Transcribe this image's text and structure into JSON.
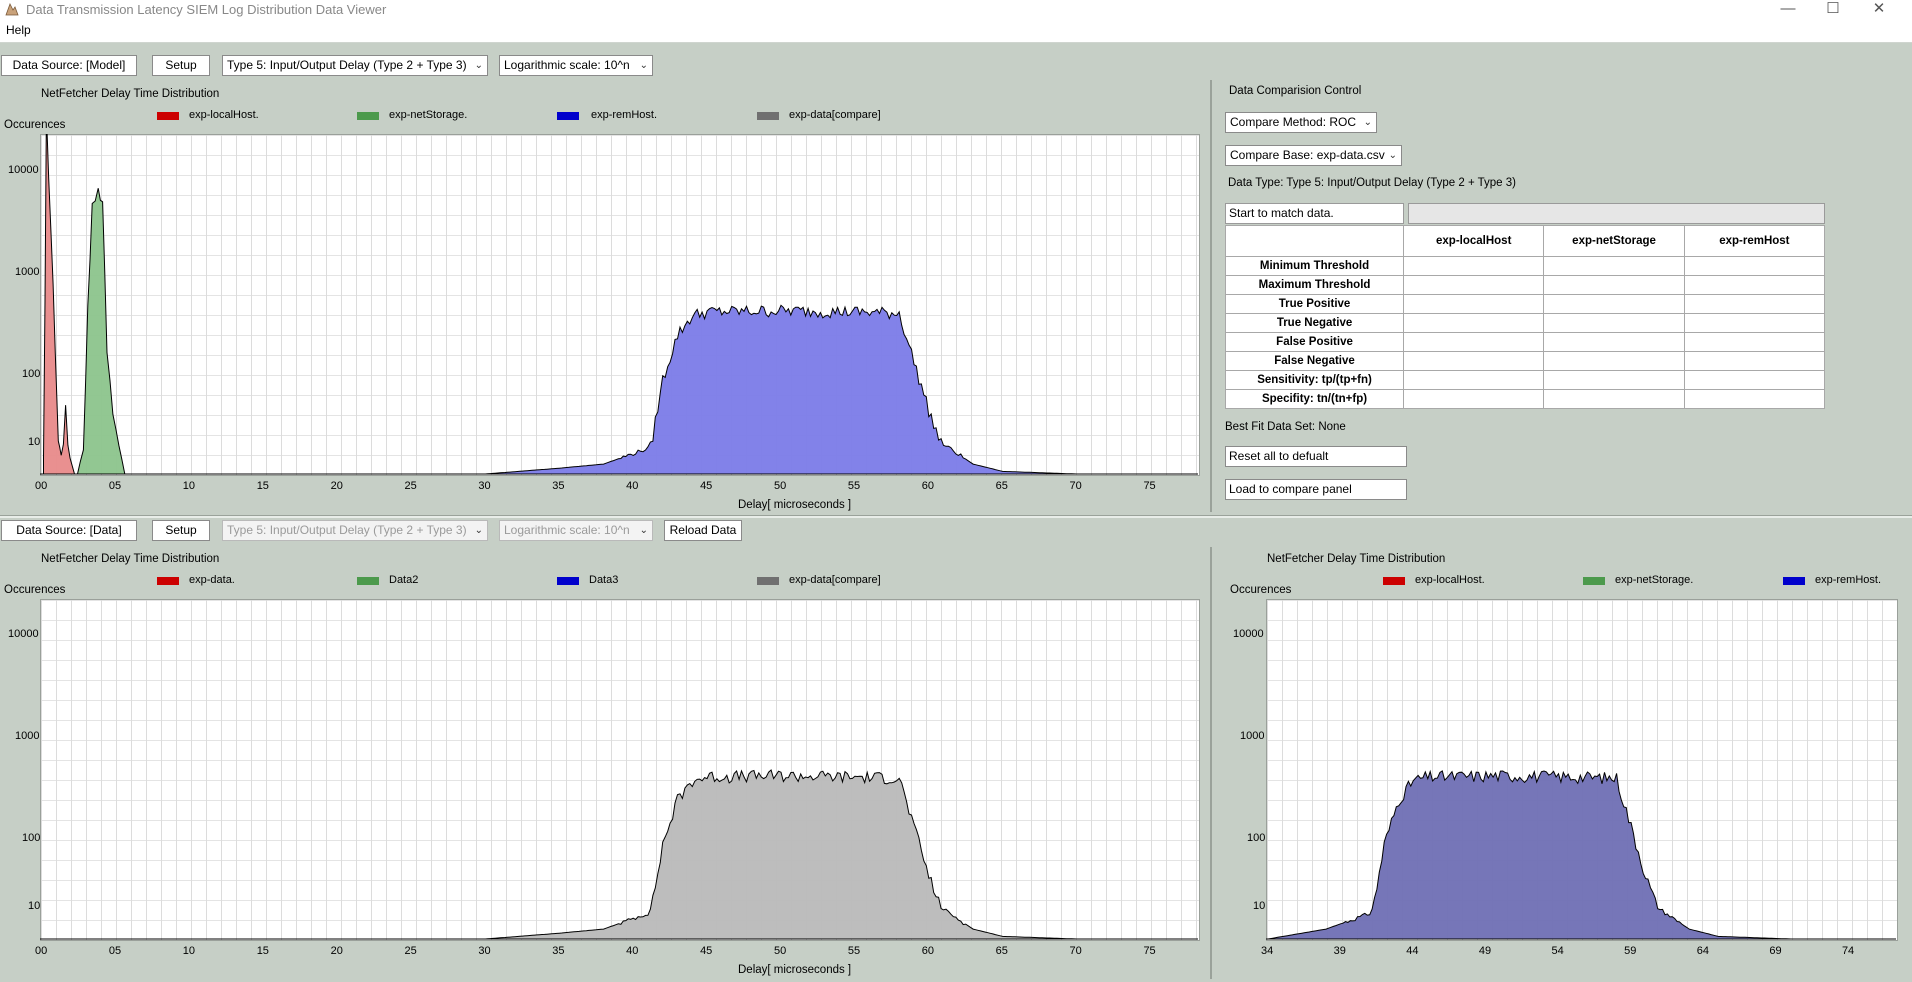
{
  "window": {
    "title": "Data Transmission Latency SIEM Log Distribution Data Viewer",
    "minimize": "—",
    "maximize": "☐",
    "close": "✕"
  },
  "menu": {
    "help": "Help"
  },
  "top_toolbar": {
    "data_source": "Data Source: [Model]",
    "setup": "Setup",
    "type_select": "Type 5: Input/Output Delay (Type 2 + Type 3)",
    "scale_select": "Logarithmic scale: 10^n"
  },
  "bottom_toolbar": {
    "data_source": "Data Source: [Data]",
    "setup": "Setup",
    "type_select": "Type 5: Input/Output Delay (Type 2 + Type 3)",
    "scale_select": "Logarithmic scale: 10^n",
    "reload": "Reload Data"
  },
  "compare_panel": {
    "title": "Data Comparision Control",
    "method_select": "Compare Method: ROC",
    "base_select": "Compare Base: exp-data.csv",
    "data_type": "Data Type: Type 5: Input/Output Delay (Type 2 + Type 3)",
    "status": "Start to match data.",
    "progress": "",
    "columns": [
      "",
      "exp-localHost",
      "exp-netStorage",
      "exp-remHost"
    ],
    "rows": [
      "Minimum Threshold",
      "Maximum Threshold",
      "True Positive",
      "True Negative",
      "False Positive",
      "False Negative",
      "Sensitivity: tp/(tp+fn)",
      "Specifity: tn/(tn+fp)"
    ],
    "best_fit": "Best Fit Data Set: None",
    "reset_button": "Reset all to defualt",
    "load_button": "Load to compare panel"
  },
  "colors": {
    "red": "#cc0000",
    "green": "#4c9a4c",
    "blue": "#0000cc",
    "gray": "#707070",
    "blue_fill": "#7b7be8",
    "gray_fill": "#b9b9b9",
    "green_fill": "#8cc48c",
    "red_fill": "#e88a8a",
    "navy_fill": "#6f6fb4"
  },
  "chart_data": [
    {
      "id": "top",
      "type": "area",
      "title": "NetFetcher Delay Time Distribution",
      "ylabel": "Occurences",
      "xlabel": "Delay[ microseconds ]",
      "yscale": "log",
      "y_ticks": [
        "10000",
        "1000",
        "100",
        "10"
      ],
      "x_ticks": [
        "00",
        "05",
        "10",
        "15",
        "20",
        "25",
        "30",
        "35",
        "40",
        "45",
        "50",
        "55",
        "60",
        "65",
        "70",
        "75"
      ],
      "x_range": [
        0,
        77
      ],
      "legend": [
        "exp-localHost.",
        "exp-netStorage.",
        "exp-remHost.",
        "exp-data[compare]"
      ],
      "series": [
        {
          "name": "exp-localHost.",
          "points": [
            [
              0.1,
              3
            ],
            [
              0.3,
              15000
            ],
            [
              0.6,
              1200
            ],
            [
              0.9,
              80
            ],
            [
              1.1,
              10
            ],
            [
              1.3,
              4
            ],
            [
              1.6,
              20
            ],
            [
              1.9,
              3
            ],
            [
              2.2,
              1
            ]
          ]
        },
        {
          "name": "exp-netStorage.",
          "points": [
            [
              2.4,
              1
            ],
            [
              2.8,
              6
            ],
            [
              3.1,
              200
            ],
            [
              3.4,
              2300
            ],
            [
              3.8,
              2800
            ],
            [
              4.1,
              2200
            ],
            [
              4.4,
              80
            ],
            [
              4.8,
              20
            ],
            [
              5.2,
              8
            ],
            [
              5.6,
              1
            ]
          ]
        },
        {
          "name": "exp-remHost.",
          "points": [
            [
              30,
              1
            ],
            [
              35,
              1.5
            ],
            [
              38,
              2
            ],
            [
              41,
              6
            ],
            [
              42,
              40
            ],
            [
              43,
              110
            ],
            [
              44,
              170
            ],
            [
              45,
              185
            ],
            [
              50,
              190
            ],
            [
              55,
              185
            ],
            [
              58,
              180
            ],
            [
              59,
              60
            ],
            [
              60,
              20
            ],
            [
              61,
              8
            ],
            [
              62,
              4
            ],
            [
              63,
              2
            ],
            [
              65,
              1.2
            ],
            [
              70,
              1
            ],
            [
              76,
              1
            ]
          ]
        }
      ]
    },
    {
      "id": "bottom_left",
      "type": "area",
      "title": "NetFetcher Delay Time Distribution",
      "ylabel": "Occurences",
      "xlabel": "Delay[ microseconds ]",
      "yscale": "log",
      "y_ticks": [
        "10000",
        "1000",
        "100",
        "10"
      ],
      "x_ticks": [
        "00",
        "05",
        "10",
        "15",
        "20",
        "25",
        "30",
        "35",
        "40",
        "45",
        "50",
        "55",
        "60",
        "65",
        "70",
        "75"
      ],
      "x_range": [
        0,
        77
      ],
      "legend": [
        "exp-data.",
        "Data2",
        "Data3",
        "exp-data[compare]"
      ],
      "series": [
        {
          "name": "exp-data.",
          "points": [
            [
              30,
              1
            ],
            [
              35,
              1.5
            ],
            [
              38,
              2
            ],
            [
              41,
              6
            ],
            [
              42,
              40
            ],
            [
              43,
              110
            ],
            [
              44,
              170
            ],
            [
              45,
              185
            ],
            [
              50,
              190
            ],
            [
              55,
              185
            ],
            [
              58,
              180
            ],
            [
              59,
              60
            ],
            [
              60,
              20
            ],
            [
              61,
              8
            ],
            [
              62,
              4
            ],
            [
              63,
              2
            ],
            [
              65,
              1.2
            ],
            [
              70,
              1
            ],
            [
              76,
              1
            ]
          ]
        }
      ]
    },
    {
      "id": "bottom_right",
      "type": "area",
      "title": "NetFetcher Delay Time Distribution",
      "ylabel": "Occurences",
      "yscale": "log",
      "y_ticks": [
        "10000",
        "1000",
        "100",
        "10"
      ],
      "x_ticks": [
        "34",
        "39",
        "44",
        "49",
        "54",
        "59",
        "64",
        "69",
        "74"
      ],
      "x_range": [
        34,
        76
      ],
      "legend": [
        "exp-localHost.",
        "exp-netStorage.",
        "exp-remHost."
      ],
      "series": [
        {
          "name": "exp-remHost.",
          "points": [
            [
              34,
              1
            ],
            [
              38,
              2
            ],
            [
              41,
              6
            ],
            [
              42,
              40
            ],
            [
              43,
              110
            ],
            [
              44,
              170
            ],
            [
              45,
              185
            ],
            [
              50,
              190
            ],
            [
              55,
              185
            ],
            [
              58,
              180
            ],
            [
              59,
              60
            ],
            [
              60,
              20
            ],
            [
              61,
              8
            ],
            [
              62,
              4
            ],
            [
              63,
              2
            ],
            [
              65,
              1.2
            ],
            [
              70,
              1
            ],
            [
              76,
              1
            ]
          ]
        }
      ]
    }
  ]
}
